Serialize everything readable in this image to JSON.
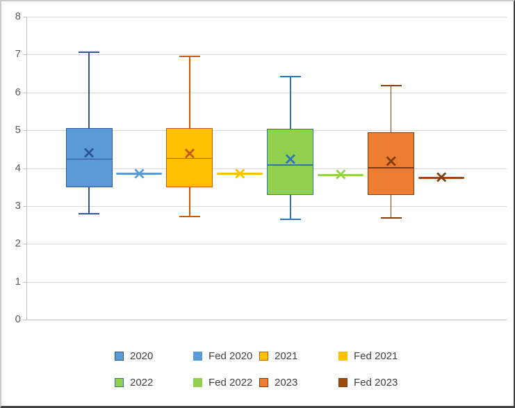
{
  "window": {
    "background": "#FFFFFF",
    "frame_light_border": "#CBCBCB",
    "frame_dark_border": "#3F3F3F"
  },
  "chart_data": {
    "type": "boxplot",
    "title": "",
    "xlabel": "",
    "ylabel": "",
    "grid": true,
    "legend_position": "bottom",
    "y_axis": {
      "min": 0,
      "max": 8,
      "tick_interval": 1,
      "tick_labels": [
        "0",
        "1",
        "2",
        "3",
        "4",
        "5",
        "6",
        "7",
        "8"
      ],
      "label_color": "#595959",
      "gridline_color": "#D9D9D9",
      "axis_color": "#BFBFBF"
    },
    "series": [
      {
        "name": "2020",
        "kind": "box",
        "fill": "#5B9BD5",
        "line": "#2F5597",
        "min": 2.8,
        "q1": 3.5,
        "median": 4.25,
        "q3": 5.05,
        "max": 7.07,
        "mean": 4.4
      },
      {
        "name": "Fed 2020",
        "kind": "mean-line",
        "color": "#5B9BD5",
        "line": "#5B9BD5",
        "value": 3.85
      },
      {
        "name": "2021",
        "kind": "box",
        "fill": "#FFC000",
        "line": "#C55A11",
        "min": 2.72,
        "q1": 3.5,
        "median": 4.27,
        "q3": 5.06,
        "max": 6.95,
        "mean": 4.38
      },
      {
        "name": "Fed 2021",
        "kind": "mean-line",
        "color": "#FFC000",
        "line": "#FFC000",
        "value": 3.85
      },
      {
        "name": "2022",
        "kind": "box",
        "fill": "#92D050",
        "line": "#2E75B6",
        "min": 2.65,
        "q1": 3.3,
        "median": 4.1,
        "q3": 5.03,
        "max": 6.42,
        "mean": 4.23
      },
      {
        "name": "Fed 2022",
        "kind": "mean-line",
        "color": "#92D050",
        "line": "#92D050",
        "value": 3.82
      },
      {
        "name": "2023",
        "kind": "box",
        "fill": "#ED7D31",
        "line": "#843C0C",
        "min": 2.68,
        "q1": 3.3,
        "median": 4.02,
        "q3": 4.94,
        "max": 6.18,
        "mean": 4.17
      },
      {
        "name": "Fed 2023",
        "kind": "mean-line",
        "color": "#9C4A0E",
        "line": "#843C0C",
        "value": 3.75
      }
    ]
  },
  "legend": {
    "rows": [
      [
        "2020",
        "Fed 2020",
        "2021",
        "Fed 2021"
      ],
      [
        "2022",
        "Fed 2022",
        "2023",
        "Fed 2023"
      ]
    ]
  }
}
